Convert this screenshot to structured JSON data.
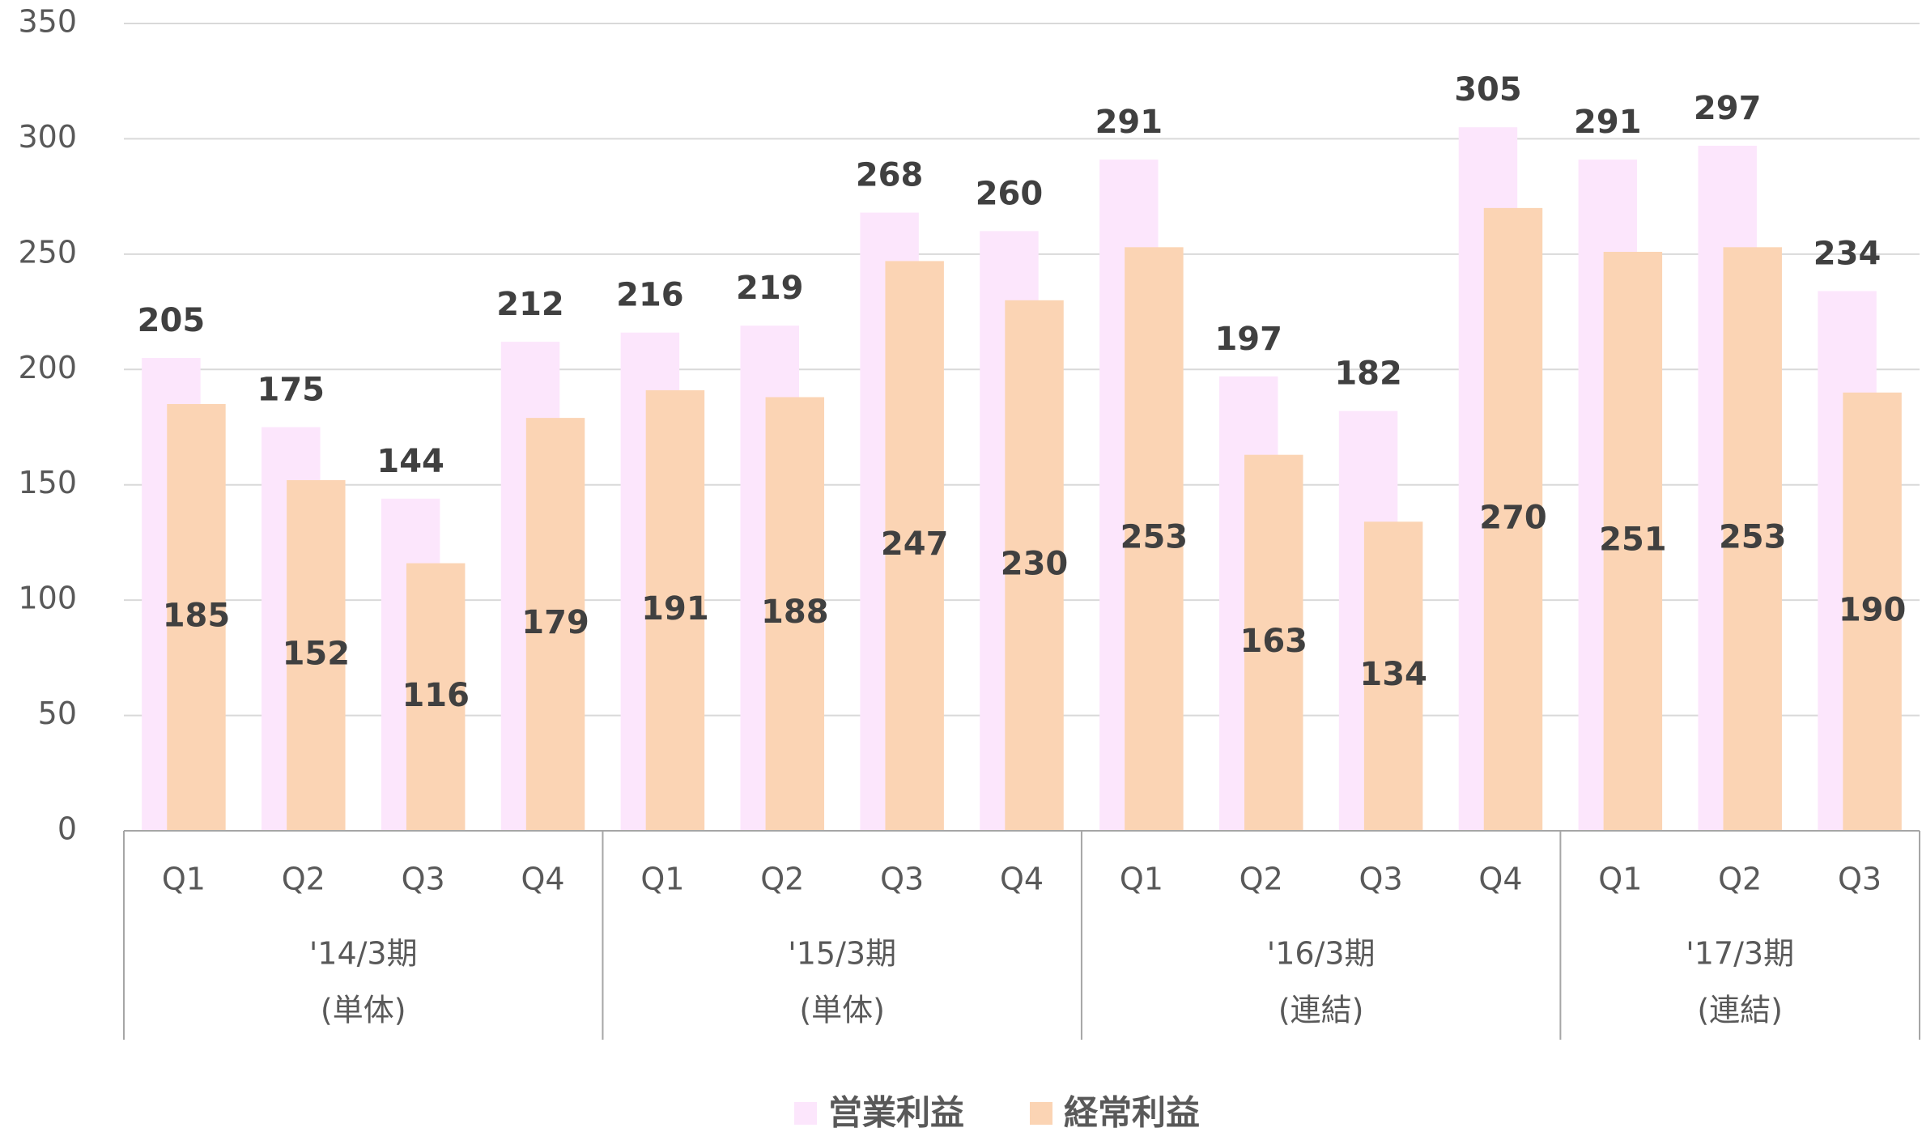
{
  "chart_data": {
    "type": "bar",
    "overlap": true,
    "groups": [
      {
        "name": "'14/3期",
        "note": "(単体)",
        "categories": [
          "Q1",
          "Q2",
          "Q3",
          "Q4"
        ]
      },
      {
        "name": "'15/3期",
        "note": "(単体)",
        "categories": [
          "Q1",
          "Q2",
          "Q3",
          "Q4"
        ]
      },
      {
        "name": "'16/3期",
        "note": "(連結)",
        "categories": [
          "Q1",
          "Q2",
          "Q3",
          "Q4"
        ]
      },
      {
        "name": "'17/3期",
        "note": "(連結)",
        "categories": [
          "Q1",
          "Q2",
          "Q3"
        ]
      }
    ],
    "series": [
      {
        "name": "営業利益",
        "color": "#fce6fc",
        "values": [
          205,
          175,
          144,
          212,
          216,
          219,
          268,
          260,
          291,
          197,
          182,
          305,
          291,
          297,
          234
        ]
      },
      {
        "name": "経常利益",
        "color": "#fbd4b4",
        "values": [
          185,
          152,
          116,
          179,
          191,
          188,
          247,
          230,
          253,
          163,
          134,
          270,
          251,
          253,
          190
        ]
      }
    ],
    "ylim": [
      0,
      350
    ],
    "yticks": [
      0,
      50,
      100,
      150,
      200,
      250,
      300,
      350
    ],
    "grid": true,
    "legend": "bottom"
  }
}
